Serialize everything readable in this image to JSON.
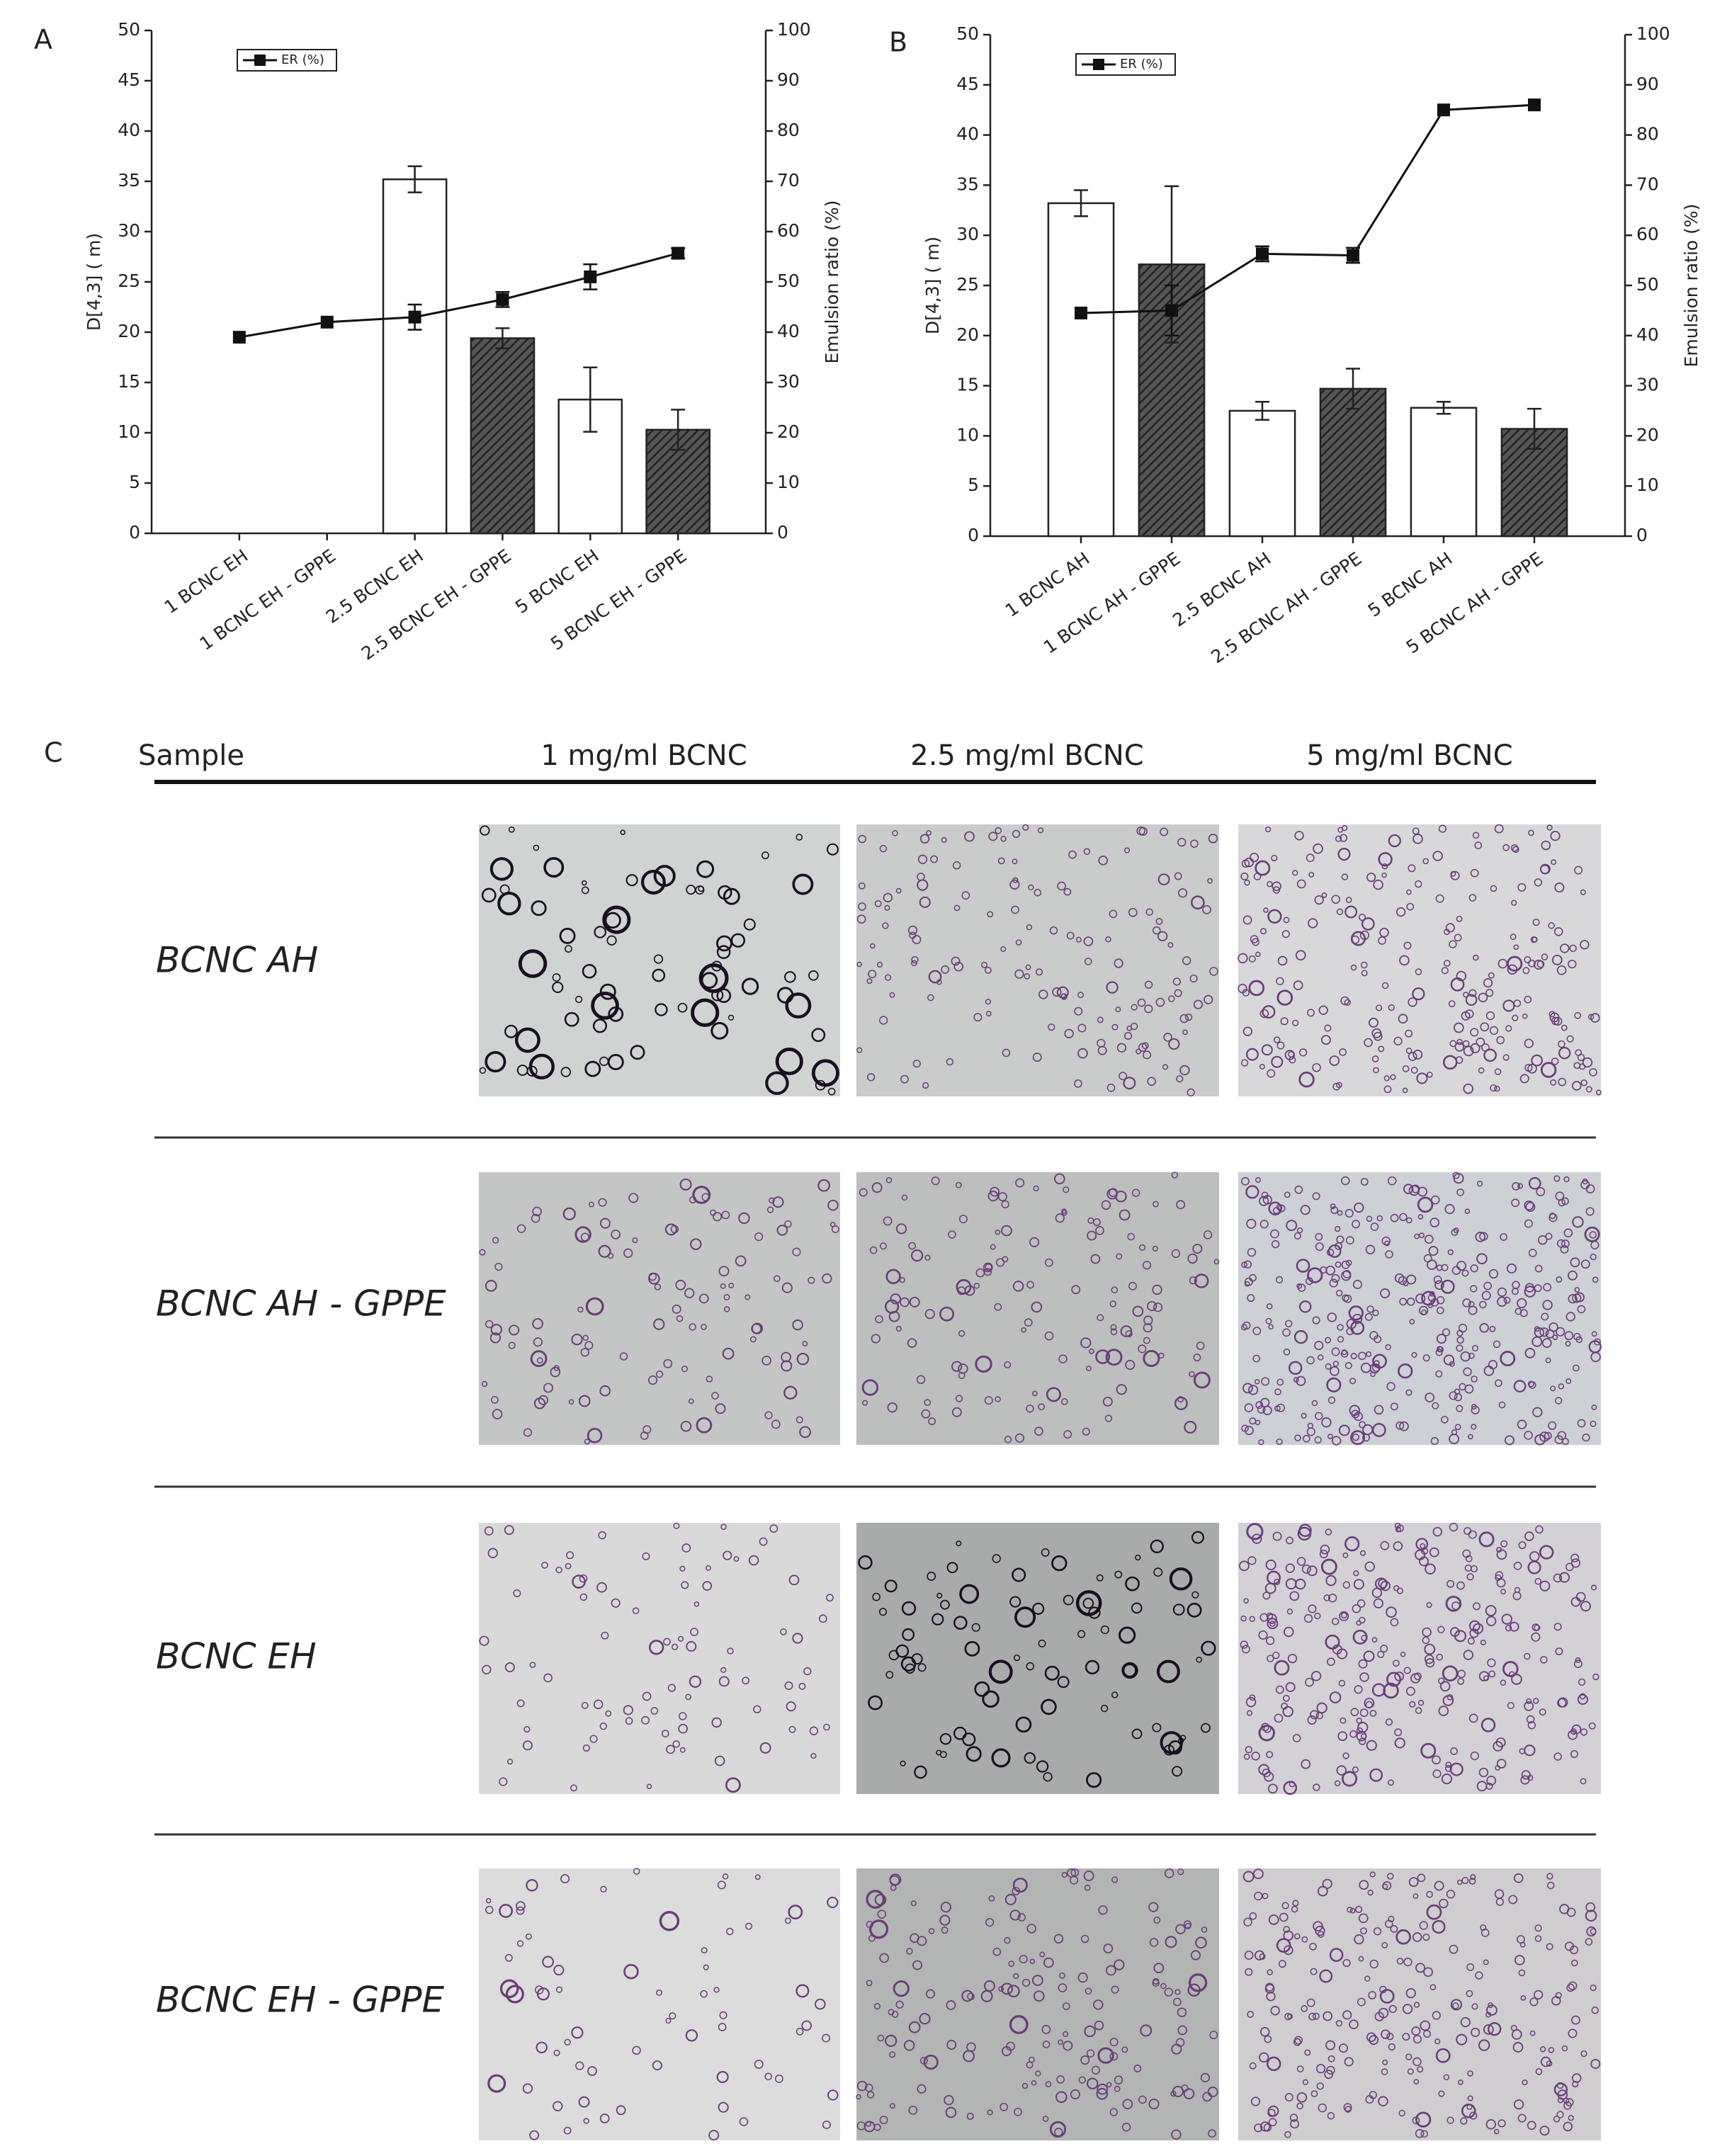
{
  "chart_data": [
    {
      "type": "bar",
      "panel": "A",
      "ylabel": "D[4,3] (  m)",
      "y2label": "Emulsion ratio (%)",
      "categories": [
        "1 BCNC EH",
        "1 BCNC EH - GPPE",
        "2.5 BCNC EH",
        "2.5 BCNC EH - GPPE",
        "5 BCNC EH",
        "5 BCNC EH - GPPE"
      ],
      "values": [
        null,
        null,
        35.2,
        19.4,
        13.3,
        10.3
      ],
      "errors": [
        null,
        null,
        1.3,
        1.0,
        3.2,
        2.0
      ],
      "bar_fills": [
        "white",
        "hatched",
        "white",
        "hatched",
        "white",
        "hatched"
      ],
      "series": [
        {
          "name": "ER (%)",
          "axis": "y2",
          "color": "#111111",
          "values": [
            39,
            42,
            43,
            46.5,
            51,
            55.7
          ],
          "errors": [
            null,
            null,
            2.5,
            1.5,
            2.5,
            1
          ]
        }
      ],
      "ylim": [
        0,
        50
      ],
      "yticks": [
        0,
        5,
        10,
        15,
        20,
        25,
        30,
        35,
        40,
        45,
        50
      ],
      "y2lim": [
        0,
        100
      ],
      "y2ticks": [
        0,
        10,
        20,
        30,
        40,
        50,
        60,
        70,
        80,
        90,
        100
      ],
      "legend": "upper left"
    },
    {
      "type": "bar",
      "panel": "B",
      "ylabel": "D[4,3] (  m)",
      "y2label": "Emulsion ratio (%)",
      "categories": [
        "1 BCNC AH",
        "1 BCNC AH - GPPE",
        "2.5 BCNC AH",
        "2.5 BCNC AH - GPPE",
        "5 BCNC AH",
        "5 BCNC AH - GPPE"
      ],
      "values": [
        33.2,
        27.1,
        12.5,
        14.7,
        12.8,
        10.7
      ],
      "errors": [
        1.3,
        7.8,
        0.9,
        2.0,
        0.6,
        2.0
      ],
      "bar_fills": [
        "white",
        "hatched",
        "white",
        "hatched",
        "white",
        "hatched"
      ],
      "series": [
        {
          "name": "ER (%)",
          "axis": "y2",
          "color": "#111111",
          "values": [
            44.5,
            45,
            56.3,
            56,
            85,
            86
          ],
          "errors": [
            null,
            5,
            1.5,
            1.5,
            null,
            null
          ]
        }
      ],
      "ylim": [
        0,
        50
      ],
      "yticks": [
        0,
        5,
        10,
        15,
        20,
        25,
        30,
        35,
        40,
        45,
        50
      ],
      "y2lim": [
        0,
        100
      ],
      "y2ticks": [
        0,
        10,
        20,
        30,
        40,
        50,
        60,
        70,
        80,
        90,
        100
      ],
      "legend": "upper left"
    }
  ],
  "panel_c": {
    "label": "C",
    "header": [
      "Sample",
      "1 mg/ml BCNC",
      "2.5 mg/ml BCNC",
      "5 mg/ml BCNC"
    ],
    "rows": [
      "BCNC AH",
      "BCNC AH - GPPE",
      "BCNC EH",
      "BCNC EH - GPPE"
    ]
  }
}
